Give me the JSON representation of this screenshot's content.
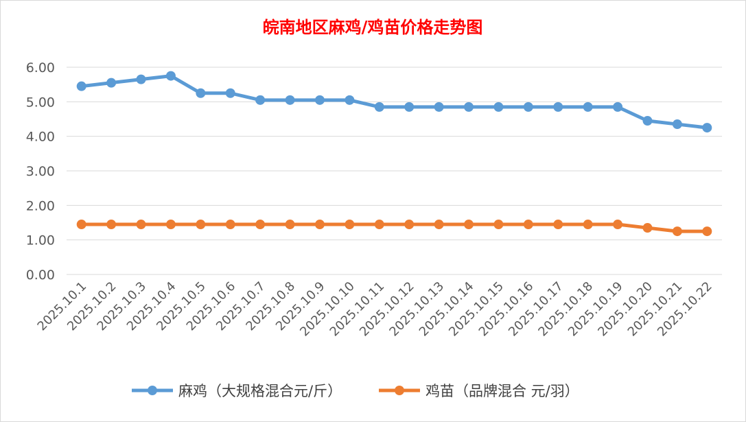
{
  "chart_data": {
    "type": "line",
    "title": "皖南地区麻鸡/鸡苗价格走势图",
    "categories": [
      "2025.10.1",
      "2025.10.2",
      "2025.10.3",
      "2025.10.4",
      "2025.10.5",
      "2025.10.6",
      "2025.10.7",
      "2025.10.8",
      "2025.10.9",
      "2025.10.10",
      "2025.10.11",
      "2025.10.12",
      "2025.10.13",
      "2025.10.14",
      "2025.10.15",
      "2025.10.16",
      "2025.10.17",
      "2025.10.18",
      "2025.10.19",
      "2025.10.20",
      "2025.10.21",
      "2025.10.22"
    ],
    "series": [
      {
        "name": "麻鸡（大规格混合元/斤）",
        "color": "#5B9BD5",
        "values": [
          5.45,
          5.55,
          5.65,
          5.75,
          5.25,
          5.25,
          5.05,
          5.05,
          5.05,
          5.05,
          4.85,
          4.85,
          4.85,
          4.85,
          4.85,
          4.85,
          4.85,
          4.85,
          4.85,
          4.45,
          4.35,
          4.25
        ]
      },
      {
        "name": "鸡苗（品牌混合 元/羽）",
        "color": "#ED7D31",
        "values": [
          1.45,
          1.45,
          1.45,
          1.45,
          1.45,
          1.45,
          1.45,
          1.45,
          1.45,
          1.45,
          1.45,
          1.45,
          1.45,
          1.45,
          1.45,
          1.45,
          1.45,
          1.45,
          1.45,
          1.35,
          1.25,
          1.25
        ]
      }
    ],
    "yticks": [
      "0.00",
      "1.00",
      "2.00",
      "3.00",
      "4.00",
      "5.00",
      "6.00"
    ],
    "ylim": [
      0,
      6
    ],
    "grid": true,
    "legend": "bottom",
    "title_color": "#FF0000"
  }
}
